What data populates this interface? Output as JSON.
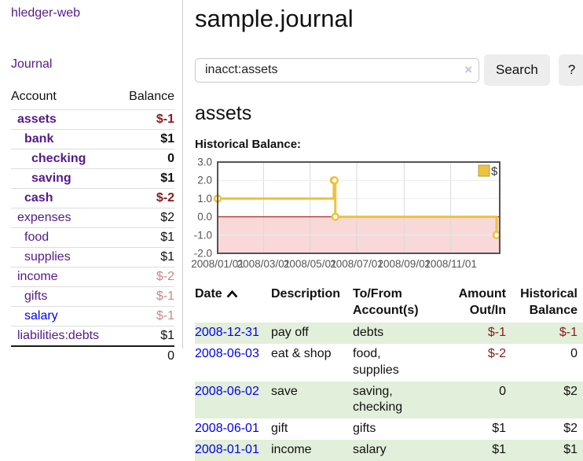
{
  "app": {
    "title": "hledger-web"
  },
  "sidebar": {
    "journal_link": "Journal",
    "headers": {
      "account": "Account",
      "balance": "Balance"
    },
    "accounts": [
      {
        "name": "assets",
        "balance": "$-1"
      },
      {
        "name": "bank",
        "balance": "$1"
      },
      {
        "name": "checking",
        "balance": "0"
      },
      {
        "name": "saving",
        "balance": "$1"
      },
      {
        "name": "cash",
        "balance": "$-2"
      },
      {
        "name": "expenses",
        "balance": "$2"
      },
      {
        "name": "food",
        "balance": "$1"
      },
      {
        "name": "supplies",
        "balance": "$1"
      },
      {
        "name": "income",
        "balance": "$-2"
      },
      {
        "name": "gifts",
        "balance": "$-1"
      },
      {
        "name": "salary",
        "balance": "$-1"
      },
      {
        "name": "liabilities:debts",
        "balance": "$1"
      }
    ],
    "total": "0"
  },
  "main": {
    "title": "sample.journal",
    "search": {
      "value": "inacct:assets",
      "clear_icon": "×",
      "button_label": "Search",
      "help_label": "?"
    },
    "account_heading": "assets",
    "chart_label": "Historical Balance:",
    "register": {
      "headers": {
        "date": "Date",
        "description": "Description",
        "account": "To/From Account(s)",
        "amount": "Amount Out/In",
        "balance": "Historical Balance"
      },
      "rows": [
        {
          "date": "2008-12-31",
          "description": "pay off",
          "account": "debts",
          "amount": "$-1",
          "balance": "$-1"
        },
        {
          "date": "2008-06-03",
          "description": "eat & shop",
          "account": "food, supplies",
          "amount": "$-2",
          "balance": "0"
        },
        {
          "date": "2008-06-02",
          "description": "save",
          "account": "saving, checking",
          "amount": "0",
          "balance": "$2"
        },
        {
          "date": "2008-06-01",
          "description": "gift",
          "account": "gifts",
          "amount": "$1",
          "balance": "$2"
        },
        {
          "date": "2008-01-01",
          "description": "income",
          "account": "salary",
          "amount": "$1",
          "balance": "$1"
        }
      ]
    }
  },
  "chart_data": {
    "type": "line",
    "step": "step-after",
    "title": "Historical Balance",
    "x_range": [
      "2008-01-01",
      "2008-12-31"
    ],
    "ylim": [
      -2,
      3
    ],
    "y_ticks": [
      3.0,
      2.0,
      1.0,
      0.0,
      -1.0,
      -2.0
    ],
    "y_tick_labels": [
      "3.0",
      "2.0",
      "1.0",
      "0.0",
      "-1.0",
      "-2.0"
    ],
    "x_tick_labels": [
      "2008/01/01",
      "2008/03/01",
      "2008/05/01",
      "2008/07/01",
      "2008/09/01",
      "2008/11/01"
    ],
    "grid": true,
    "legend_position": "top-right",
    "colors": {
      "line": "#edc240",
      "marker_fill": "#ffffff",
      "negative_region": "#f8d8d8",
      "zero_line": "#a40000",
      "plot_border": "#545454",
      "grid_x": "#d9d9d9",
      "grid_y": "#ececec",
      "tick_text": "#545454",
      "legend_text": "#333333"
    },
    "series": [
      {
        "name": "$",
        "points": [
          {
            "date": "2008-01-01",
            "value": 1
          },
          {
            "date": "2008-06-01",
            "value": 2
          },
          {
            "date": "2008-06-02",
            "value": 2
          },
          {
            "date": "2008-06-03",
            "value": 0
          },
          {
            "date": "2008-12-31",
            "value": -1
          }
        ]
      }
    ]
  }
}
